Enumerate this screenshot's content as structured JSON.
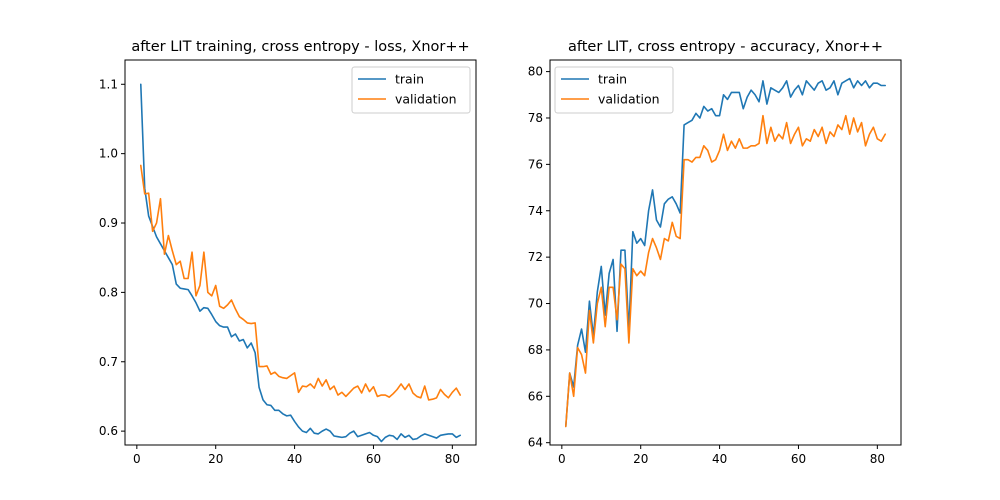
{
  "chart_data": [
    {
      "type": "line",
      "title": "after LIT training, cross entropy - loss, Xnor++",
      "xlabel": "",
      "ylabel": "",
      "xlim": [
        -3,
        86
      ],
      "ylim": [
        0.58,
        1.135
      ],
      "xticks": [
        0,
        20,
        40,
        60,
        80
      ],
      "yticks": [
        0.6,
        0.7,
        0.8,
        0.9,
        1.0,
        1.1
      ],
      "ytick_labels": [
        "0.6",
        "0.7",
        "0.8",
        "0.9",
        "1.0",
        "1.1"
      ],
      "legend_position": "top-right",
      "series": [
        {
          "name": "train",
          "color": "#1f77b4",
          "values": [
            1.1,
            0.95,
            0.91,
            0.895,
            0.88,
            0.87,
            0.86,
            0.85,
            0.84,
            0.812,
            0.806,
            0.805,
            0.804,
            0.795,
            0.785,
            0.773,
            0.778,
            0.777,
            0.768,
            0.758,
            0.752,
            0.75,
            0.75,
            0.736,
            0.74,
            0.73,
            0.732,
            0.72,
            0.727,
            0.713,
            0.663,
            0.645,
            0.638,
            0.637,
            0.63,
            0.63,
            0.625,
            0.622,
            0.623,
            0.614,
            0.606,
            0.6,
            0.598,
            0.604,
            0.597,
            0.596,
            0.6,
            0.603,
            0.6,
            0.593,
            0.592,
            0.591,
            0.592,
            0.597,
            0.6,
            0.592,
            0.594,
            0.596,
            0.598,
            0.594,
            0.592,
            0.585,
            0.591,
            0.594,
            0.593,
            0.588,
            0.596,
            0.591,
            0.594,
            0.588,
            0.589,
            0.593,
            0.596,
            0.594,
            0.592,
            0.59,
            0.594,
            0.595,
            0.596,
            0.596,
            0.591,
            0.594
          ]
        },
        {
          "name": "validation",
          "color": "#ff7f0e",
          "values": [
            0.983,
            0.942,
            0.943,
            0.888,
            0.9,
            0.935,
            0.855,
            0.882,
            0.86,
            0.84,
            0.845,
            0.82,
            0.82,
            0.858,
            0.795,
            0.81,
            0.858,
            0.8,
            0.795,
            0.81,
            0.78,
            0.777,
            0.782,
            0.789,
            0.776,
            0.765,
            0.761,
            0.756,
            0.755,
            0.756,
            0.693,
            0.693,
            0.694,
            0.682,
            0.685,
            0.679,
            0.677,
            0.676,
            0.68,
            0.684,
            0.656,
            0.665,
            0.664,
            0.668,
            0.662,
            0.676,
            0.665,
            0.674,
            0.66,
            0.665,
            0.652,
            0.656,
            0.65,
            0.656,
            0.662,
            0.665,
            0.655,
            0.668,
            0.657,
            0.664,
            0.65,
            0.652,
            0.652,
            0.649,
            0.654,
            0.66,
            0.668,
            0.66,
            0.668,
            0.655,
            0.65,
            0.648,
            0.665,
            0.645,
            0.646,
            0.648,
            0.66,
            0.653,
            0.648,
            0.656,
            0.662,
            0.652
          ]
        }
      ]
    },
    {
      "type": "line",
      "title": "after LIT, cross entropy - accuracy, Xnor++",
      "xlabel": "",
      "ylabel": "",
      "xlim": [
        -3,
        86
      ],
      "ylim": [
        63.9,
        80.5
      ],
      "xticks": [
        0,
        20,
        40,
        60,
        80
      ],
      "yticks": [
        64,
        66,
        68,
        70,
        72,
        74,
        76,
        78,
        80
      ],
      "ytick_labels": [
        "64",
        "66",
        "68",
        "70",
        "72",
        "74",
        "76",
        "78",
        "80"
      ],
      "legend_position": "top-left",
      "series": [
        {
          "name": "train",
          "color": "#1f77b4",
          "values": [
            64.7,
            67.0,
            66.4,
            68.2,
            68.9,
            67.9,
            70.1,
            68.6,
            70.5,
            71.6,
            69.5,
            71.3,
            71.9,
            68.8,
            72.3,
            72.3,
            68.8,
            73.1,
            72.6,
            72.8,
            72.5,
            74.0,
            74.9,
            73.6,
            73.3,
            74.3,
            74.5,
            74.6,
            74.3,
            73.9,
            77.7,
            77.8,
            77.9,
            78.2,
            78.0,
            78.5,
            78.3,
            78.4,
            78.1,
            78.1,
            79.0,
            78.8,
            79.1,
            79.1,
            79.1,
            78.4,
            78.9,
            79.2,
            79.0,
            78.7,
            79.6,
            78.6,
            79.3,
            79.2,
            79.1,
            79.3,
            79.6,
            78.9,
            79.2,
            79.4,
            79.0,
            79.6,
            79.4,
            79.2,
            79.5,
            79.6,
            79.2,
            79.3,
            79.6,
            79.0,
            79.5,
            79.6,
            79.7,
            79.3,
            79.6,
            79.4,
            79.6,
            79.3,
            79.5,
            79.5,
            79.4,
            79.4
          ]
        },
        {
          "name": "validation",
          "color": "#ff7f0e",
          "values": [
            64.7,
            67.0,
            66.0,
            68.1,
            67.8,
            67.0,
            69.7,
            68.3,
            70.0,
            70.7,
            69.0,
            70.7,
            70.7,
            69.3,
            71.7,
            71.5,
            68.3,
            71.5,
            71.2,
            71.4,
            71.2,
            72.2,
            72.8,
            72.4,
            71.9,
            72.8,
            72.7,
            73.5,
            72.9,
            72.8,
            76.2,
            76.2,
            76.1,
            76.3,
            76.3,
            76.8,
            76.6,
            76.1,
            76.2,
            76.6,
            77.3,
            76.6,
            77.0,
            76.7,
            77.1,
            76.7,
            76.7,
            76.8,
            76.8,
            76.9,
            78.1,
            76.9,
            77.6,
            77.0,
            77.3,
            77.1,
            77.8,
            76.9,
            77.3,
            77.6,
            76.8,
            77.1,
            77.0,
            77.5,
            77.2,
            77.6,
            76.9,
            77.4,
            77.2,
            77.7,
            77.5,
            78.1,
            77.3,
            78.0,
            77.4,
            77.8,
            76.8,
            77.3,
            77.6,
            77.1,
            77.0,
            77.3
          ]
        }
      ]
    }
  ]
}
